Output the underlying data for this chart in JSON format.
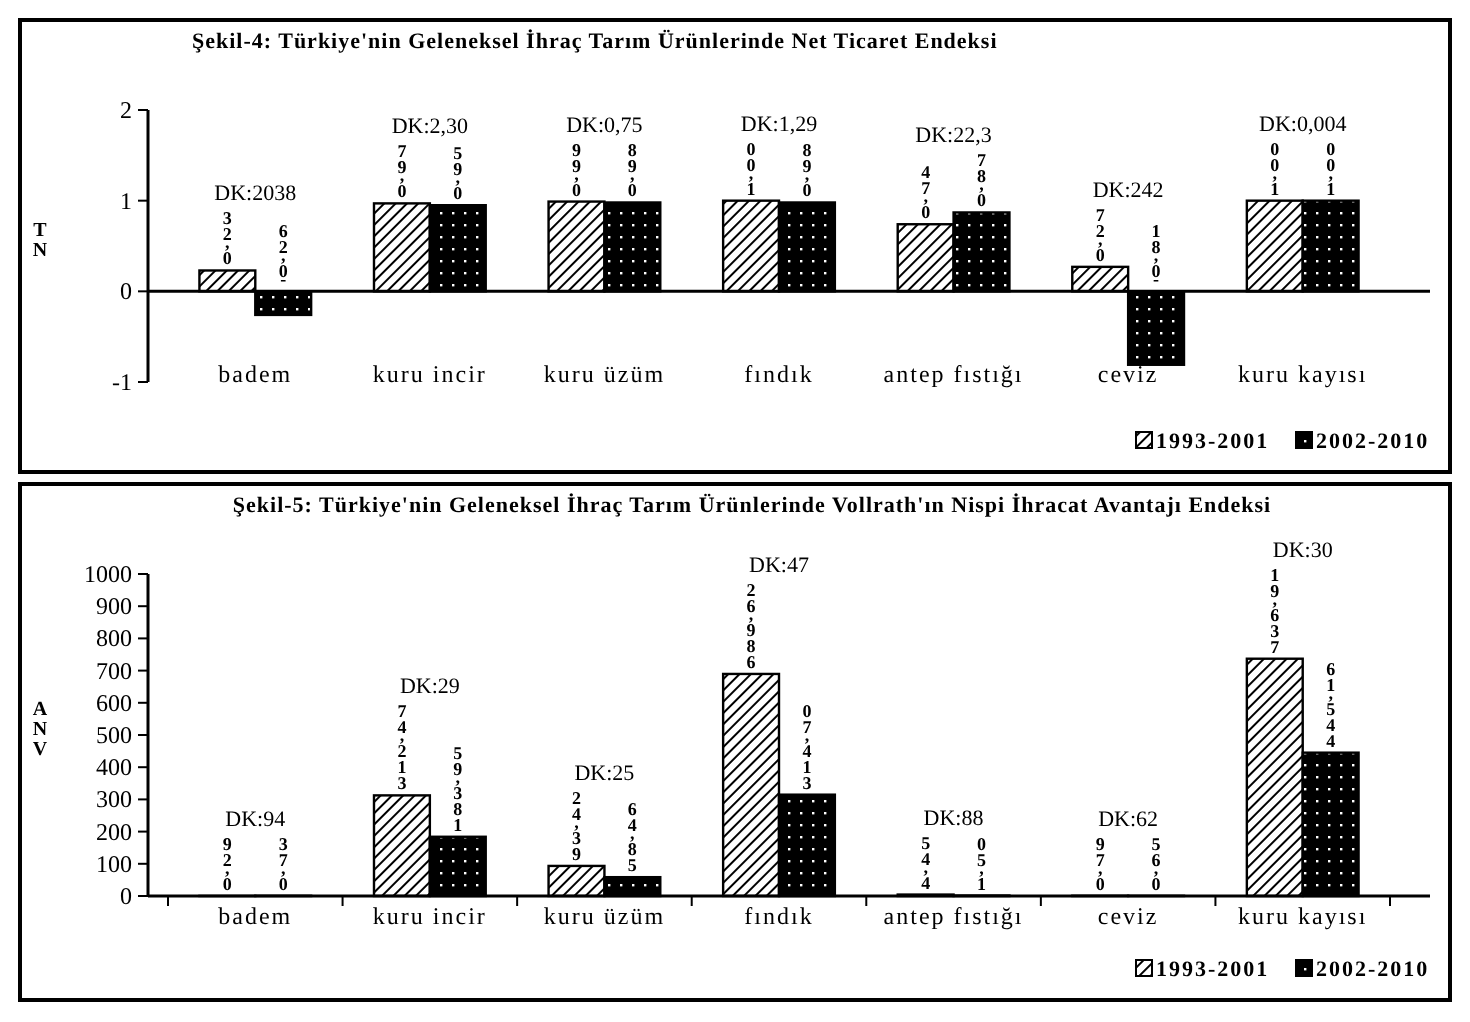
{
  "chart_data": [
    {
      "type": "bar",
      "title": "Şekil-4: Türkiye'nin Geleneksel İhraç Tarım Ürünlerinde Net Ticaret Endeksi",
      "ylabel": "TN",
      "categories": [
        "badem",
        "kuru incir",
        "kuru üzüm",
        "fındık",
        "antep fıstığı",
        "ceviz",
        "kuru kayısı"
      ],
      "series": [
        {
          "name": "1993-2001",
          "color": "#000000",
          "values": [
            0.23,
            0.97,
            0.99,
            1.0,
            0.74,
            0.27,
            1.0
          ],
          "value_labels": [
            "0,23",
            "0,97",
            "0,99",
            "1,00",
            "0,74",
            "0,27",
            "1,00"
          ]
        },
        {
          "name": "2002-2010",
          "color": "#000000",
          "values": [
            -0.26,
            0.95,
            0.98,
            0.98,
            0.87,
            -0.81,
            1.0
          ],
          "value_labels": [
            "-0,26",
            "0,95",
            "0,98",
            "0,98",
            "0,87",
            "-0,81",
            "1,00"
          ]
        }
      ],
      "ylim": [
        -1,
        2
      ],
      "yticks": [
        -1,
        0,
        1,
        2
      ],
      "legend": "bottom right",
      "annotations": [
        "DK:2038",
        "DK:2,30",
        "DK:0,75",
        "DK:1,29",
        "DK:22,3",
        "DK:242",
        "DK:0,004"
      ]
    },
    {
      "type": "bar",
      "title": "Şekil-5: Türkiye'nin Geleneksel İhraç Tarım Ürünlerinde Vollrath'ın Nispi İhracat Avantajı Endeksi",
      "ylabel": "ANV",
      "categories": [
        "badem",
        "kuru incir",
        "kuru üzüm",
        "fındık",
        "antep fıstığı",
        "ceviz",
        "kuru kayısı"
      ],
      "series": [
        {
          "name": "1993-2001",
          "color": "#000000",
          "values": [
            0.29,
            312.47,
            93.42,
            689.62,
            4.45,
            0.79,
            736.91
          ],
          "value_labels": [
            "0,29",
            "312,47",
            "93,42",
            "689,62",
            "4,45",
            "0,79",
            "736,91"
          ]
        },
        {
          "name": "2002-2010",
          "color": "#000000",
          "values": [
            0.73,
            183.95,
            58.46,
            314.7,
            1.5,
            0.65,
            445.16
          ],
          "value_labels": [
            "0,73",
            "183,95",
            "58,46",
            "314,70",
            "1,50",
            "0,65",
            "445,16"
          ]
        }
      ],
      "ylim": [
        0,
        1000
      ],
      "yticks": [
        0,
        100,
        200,
        300,
        400,
        500,
        600,
        700,
        800,
        900,
        1000
      ],
      "legend": "bottom right",
      "annotations": [
        "DK:94",
        "DK:29",
        "DK:25",
        "DK:47",
        "DK:88",
        "DK:62",
        "DK:30"
      ]
    }
  ]
}
